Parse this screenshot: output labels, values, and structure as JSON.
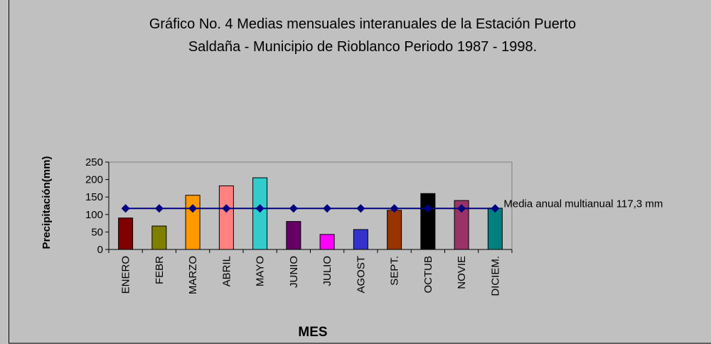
{
  "chart_data": {
    "type": "bar",
    "title": [
      "Gráfico No. 4 Medias mensuales interanuales de la Estación Puerto",
      "Saldaña - Municipio de Rioblanco Periodo 1987 - 1998."
    ],
    "y_label": "Precipitación(mm)",
    "x_label": "MES",
    "categories": [
      "ENERO",
      "FEBR",
      "MARZO",
      "ABRIL",
      "MAYO",
      "JUNIO",
      "JULIO",
      "AGOST",
      "SEPT.",
      "OCTUB",
      "NOVIE",
      "DICIEM."
    ],
    "series": [
      {
        "type": "bar",
        "colors": [
          "#800000",
          "#808000",
          "#ff9900",
          "#ff8080",
          "#33cccc",
          "#660066",
          "#ff00ff",
          "#3333cc",
          "#993300",
          "#000000",
          "#993366",
          "#008080"
        ],
        "values": [
          90,
          67,
          155,
          182,
          205,
          80,
          43,
          57,
          112,
          160,
          140,
          118
        ]
      },
      {
        "type": "line",
        "name": "Media anual multianual 117,3 mm",
        "color": "#000080",
        "values": [
          117.3,
          117.3,
          117.3,
          117.3,
          117.3,
          117.3,
          117.3,
          117.3,
          117.3,
          117.3,
          117.3,
          117.3
        ]
      }
    ],
    "ylim": [
      0,
      250
    ],
    "yticks": [
      0,
      50,
      100,
      150,
      200,
      250
    ],
    "grid": false
  }
}
